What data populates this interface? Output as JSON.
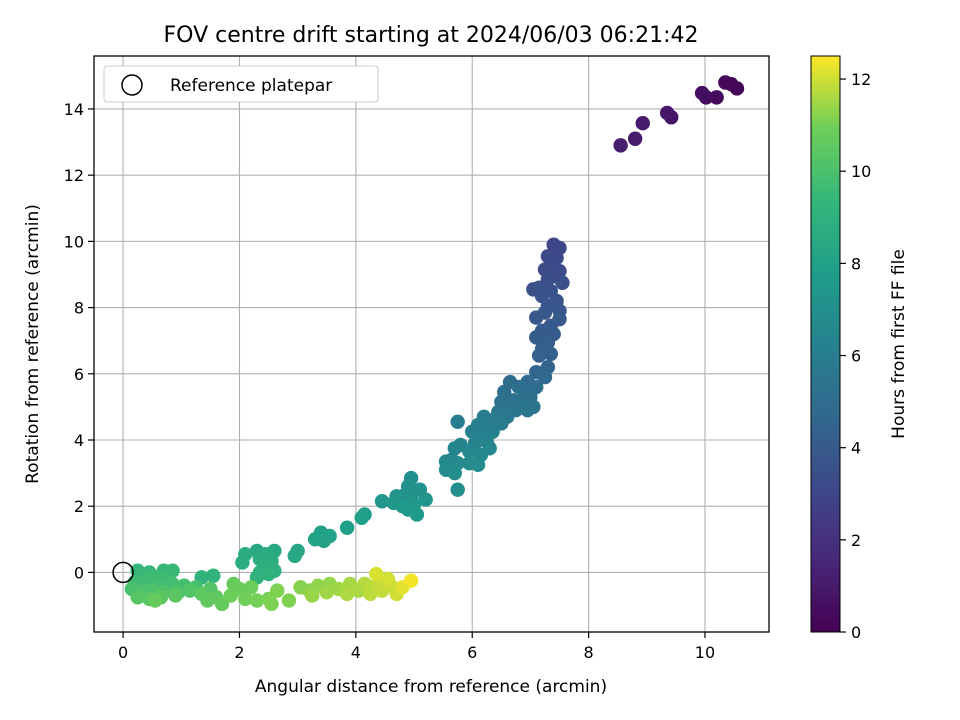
{
  "chart_data": {
    "type": "scatter",
    "title": "FOV centre drift starting at 2024/06/03 06:21:42",
    "xlabel": "Angular distance from reference (arcmin)",
    "ylabel": "Rotation from reference (arcmin)",
    "xlim": [
      -0.5,
      11.1
    ],
    "ylim": [
      -1.8,
      15.6
    ],
    "xticks": [
      0,
      2,
      4,
      6,
      8,
      10
    ],
    "yticks": [
      0,
      2,
      4,
      6,
      8,
      10,
      12,
      14
    ],
    "grid": true,
    "legend": {
      "position": "top-left",
      "entries": [
        {
          "label": "Reference platepar",
          "marker": "open-circle"
        }
      ]
    },
    "reference_point": {
      "x": 0,
      "y": 0
    },
    "colorbar": {
      "label": "Hours from first FF file",
      "range": [
        0,
        12.5
      ],
      "ticks": [
        0,
        2,
        4,
        6,
        8,
        10,
        12
      ],
      "colormap": "viridis"
    },
    "points": [
      {
        "x": 10.55,
        "y": 14.62,
        "t": 0.1
      },
      {
        "x": 10.45,
        "y": 14.75,
        "t": 0.2
      },
      {
        "x": 10.35,
        "y": 14.8,
        "t": 0.25
      },
      {
        "x": 10.2,
        "y": 14.35,
        "t": 0.4
      },
      {
        "x": 10.02,
        "y": 14.35,
        "t": 0.5
      },
      {
        "x": 9.95,
        "y": 14.48,
        "t": 0.55
      },
      {
        "x": 9.42,
        "y": 13.75,
        "t": 0.8
      },
      {
        "x": 9.35,
        "y": 13.88,
        "t": 0.85
      },
      {
        "x": 8.93,
        "y": 13.57,
        "t": 1.0
      },
      {
        "x": 8.8,
        "y": 13.1,
        "t": 1.05
      },
      {
        "x": 8.55,
        "y": 12.9,
        "t": 1.2
      },
      {
        "x": 7.4,
        "y": 9.9,
        "t": 3.0
      },
      {
        "x": 7.5,
        "y": 9.8,
        "t": 3.05
      },
      {
        "x": 7.3,
        "y": 9.55,
        "t": 3.1
      },
      {
        "x": 7.45,
        "y": 9.5,
        "t": 3.15
      },
      {
        "x": 7.35,
        "y": 9.3,
        "t": 3.2
      },
      {
        "x": 7.25,
        "y": 9.15,
        "t": 3.25
      },
      {
        "x": 7.5,
        "y": 9.1,
        "t": 3.3
      },
      {
        "x": 7.4,
        "y": 8.95,
        "t": 3.35
      },
      {
        "x": 7.3,
        "y": 8.85,
        "t": 3.4
      },
      {
        "x": 7.55,
        "y": 8.75,
        "t": 3.45
      },
      {
        "x": 7.15,
        "y": 8.6,
        "t": 3.5
      },
      {
        "x": 7.05,
        "y": 8.55,
        "t": 3.55
      },
      {
        "x": 7.35,
        "y": 8.5,
        "t": 3.6
      },
      {
        "x": 7.2,
        "y": 8.35,
        "t": 3.65
      },
      {
        "x": 7.45,
        "y": 8.2,
        "t": 3.7
      },
      {
        "x": 7.3,
        "y": 8.05,
        "t": 3.75
      },
      {
        "x": 7.5,
        "y": 7.9,
        "t": 3.8
      },
      {
        "x": 7.25,
        "y": 7.85,
        "t": 3.85
      },
      {
        "x": 7.1,
        "y": 7.7,
        "t": 3.9
      },
      {
        "x": 7.5,
        "y": 7.65,
        "t": 3.95
      },
      {
        "x": 7.35,
        "y": 7.45,
        "t": 4.0
      },
      {
        "x": 7.2,
        "y": 7.3,
        "t": 4.05
      },
      {
        "x": 7.4,
        "y": 7.2,
        "t": 4.1
      },
      {
        "x": 7.1,
        "y": 7.1,
        "t": 4.15
      },
      {
        "x": 7.3,
        "y": 6.95,
        "t": 4.2
      },
      {
        "x": 7.2,
        "y": 6.75,
        "t": 4.25
      },
      {
        "x": 7.35,
        "y": 6.6,
        "t": 4.3
      },
      {
        "x": 7.15,
        "y": 6.55,
        "t": 4.35
      },
      {
        "x": 7.3,
        "y": 6.2,
        "t": 4.5
      },
      {
        "x": 7.1,
        "y": 6.05,
        "t": 4.6
      },
      {
        "x": 7.25,
        "y": 5.9,
        "t": 4.7
      },
      {
        "x": 6.95,
        "y": 5.75,
        "t": 4.8
      },
      {
        "x": 7.1,
        "y": 5.6,
        "t": 4.9
      },
      {
        "x": 6.65,
        "y": 5.75,
        "t": 5.0
      },
      {
        "x": 6.8,
        "y": 5.6,
        "t": 5.05
      },
      {
        "x": 6.55,
        "y": 5.45,
        "t": 5.1
      },
      {
        "x": 6.9,
        "y": 5.4,
        "t": 5.15
      },
      {
        "x": 7.0,
        "y": 5.3,
        "t": 5.2
      },
      {
        "x": 6.7,
        "y": 5.2,
        "t": 5.25
      },
      {
        "x": 6.5,
        "y": 5.15,
        "t": 5.3
      },
      {
        "x": 6.85,
        "y": 5.05,
        "t": 5.35
      },
      {
        "x": 7.05,
        "y": 5.0,
        "t": 5.4
      },
      {
        "x": 6.6,
        "y": 4.95,
        "t": 5.45
      },
      {
        "x": 6.75,
        "y": 4.9,
        "t": 5.5
      },
      {
        "x": 6.45,
        "y": 4.85,
        "t": 5.55
      },
      {
        "x": 6.95,
        "y": 4.9,
        "t": 5.6
      },
      {
        "x": 6.6,
        "y": 4.7,
        "t": 5.7
      },
      {
        "x": 6.4,
        "y": 4.65,
        "t": 5.75
      },
      {
        "x": 6.5,
        "y": 4.5,
        "t": 5.8
      },
      {
        "x": 6.2,
        "y": 4.7,
        "t": 5.85
      },
      {
        "x": 6.3,
        "y": 4.55,
        "t": 5.9
      },
      {
        "x": 6.1,
        "y": 4.45,
        "t": 5.95
      },
      {
        "x": 5.75,
        "y": 4.55,
        "t": 6.0
      },
      {
        "x": 6.2,
        "y": 4.35,
        "t": 6.05
      },
      {
        "x": 6.35,
        "y": 4.25,
        "t": 6.1
      },
      {
        "x": 6.0,
        "y": 4.25,
        "t": 6.15
      },
      {
        "x": 6.15,
        "y": 4.1,
        "t": 6.2
      },
      {
        "x": 6.25,
        "y": 3.95,
        "t": 6.25
      },
      {
        "x": 6.05,
        "y": 3.9,
        "t": 6.3
      },
      {
        "x": 5.8,
        "y": 3.85,
        "t": 6.35
      },
      {
        "x": 5.7,
        "y": 3.75,
        "t": 6.4
      },
      {
        "x": 6.3,
        "y": 3.75,
        "t": 6.45
      },
      {
        "x": 5.95,
        "y": 3.65,
        "t": 6.5
      },
      {
        "x": 6.15,
        "y": 3.55,
        "t": 6.55
      },
      {
        "x": 5.65,
        "y": 3.4,
        "t": 6.6
      },
      {
        "x": 5.55,
        "y": 3.35,
        "t": 6.65
      },
      {
        "x": 5.75,
        "y": 3.3,
        "t": 6.7
      },
      {
        "x": 5.95,
        "y": 3.3,
        "t": 6.75
      },
      {
        "x": 6.1,
        "y": 3.25,
        "t": 6.8
      },
      {
        "x": 5.55,
        "y": 3.1,
        "t": 6.85
      },
      {
        "x": 5.7,
        "y": 3.0,
        "t": 6.9
      },
      {
        "x": 5.75,
        "y": 2.5,
        "t": 6.95
      },
      {
        "x": 4.95,
        "y": 2.85,
        "t": 7.0
      },
      {
        "x": 4.9,
        "y": 2.6,
        "t": 7.05
      },
      {
        "x": 5.1,
        "y": 2.5,
        "t": 7.1
      },
      {
        "x": 4.85,
        "y": 2.35,
        "t": 7.15
      },
      {
        "x": 4.7,
        "y": 2.3,
        "t": 7.2
      },
      {
        "x": 4.95,
        "y": 2.25,
        "t": 7.25
      },
      {
        "x": 5.2,
        "y": 2.2,
        "t": 7.3
      },
      {
        "x": 4.45,
        "y": 2.15,
        "t": 7.35
      },
      {
        "x": 4.65,
        "y": 2.1,
        "t": 7.4
      },
      {
        "x": 5.0,
        "y": 2.05,
        "t": 7.45
      },
      {
        "x": 4.8,
        "y": 2.0,
        "t": 7.5
      },
      {
        "x": 4.9,
        "y": 1.9,
        "t": 7.55
      },
      {
        "x": 5.05,
        "y": 1.75,
        "t": 7.6
      },
      {
        "x": 4.15,
        "y": 1.75,
        "t": 7.8
      },
      {
        "x": 4.1,
        "y": 1.65,
        "t": 7.85
      },
      {
        "x": 3.85,
        "y": 1.35,
        "t": 7.9
      },
      {
        "x": 3.4,
        "y": 1.2,
        "t": 8.0
      },
      {
        "x": 3.55,
        "y": 1.1,
        "t": 8.05
      },
      {
        "x": 3.3,
        "y": 1.0,
        "t": 8.1
      },
      {
        "x": 3.45,
        "y": 0.95,
        "t": 8.15
      },
      {
        "x": 3.0,
        "y": 0.65,
        "t": 8.3
      },
      {
        "x": 2.95,
        "y": 0.5,
        "t": 8.35
      },
      {
        "x": 2.6,
        "y": 0.65,
        "t": 8.45
      },
      {
        "x": 2.3,
        "y": 0.65,
        "t": 8.5
      },
      {
        "x": 2.45,
        "y": 0.55,
        "t": 8.55
      },
      {
        "x": 2.1,
        "y": 0.55,
        "t": 8.6
      },
      {
        "x": 2.35,
        "y": 0.4,
        "t": 8.65
      },
      {
        "x": 2.55,
        "y": 0.35,
        "t": 8.7
      },
      {
        "x": 2.05,
        "y": 0.3,
        "t": 8.75
      },
      {
        "x": 2.45,
        "y": 0.2,
        "t": 8.8
      },
      {
        "x": 2.6,
        "y": 0.05,
        "t": 8.85
      },
      {
        "x": 2.35,
        "y": 0.0,
        "t": 8.9
      },
      {
        "x": 2.5,
        "y": -0.05,
        "t": 8.95
      },
      {
        "x": 2.3,
        "y": -0.15,
        "t": 9.0
      },
      {
        "x": 1.55,
        "y": -0.1,
        "t": 9.1
      },
      {
        "x": 1.35,
        "y": -0.15,
        "t": 9.15
      },
      {
        "x": 0.25,
        "y": 0.05,
        "t": 9.3
      },
      {
        "x": 0.45,
        "y": 0.0,
        "t": 9.35
      },
      {
        "x": 0.7,
        "y": 0.05,
        "t": 9.4
      },
      {
        "x": 0.85,
        "y": 0.05,
        "t": 9.45
      },
      {
        "x": 0.35,
        "y": -0.1,
        "t": 9.5
      },
      {
        "x": 0.55,
        "y": -0.15,
        "t": 9.55
      },
      {
        "x": 0.75,
        "y": -0.2,
        "t": 9.6
      },
      {
        "x": 0.2,
        "y": -0.3,
        "t": 9.65
      },
      {
        "x": 0.4,
        "y": -0.3,
        "t": 9.7
      },
      {
        "x": 0.6,
        "y": -0.35,
        "t": 9.75
      },
      {
        "x": 0.85,
        "y": -0.35,
        "t": 9.8
      },
      {
        "x": 1.05,
        "y": -0.4,
        "t": 9.85
      },
      {
        "x": 1.25,
        "y": -0.45,
        "t": 9.9
      },
      {
        "x": 0.15,
        "y": -0.5,
        "t": 9.95
      },
      {
        "x": 0.3,
        "y": -0.55,
        "t": 10.0
      },
      {
        "x": 0.5,
        "y": -0.55,
        "t": 10.05
      },
      {
        "x": 0.7,
        "y": -0.6,
        "t": 10.1
      },
      {
        "x": 0.95,
        "y": -0.6,
        "t": 10.15
      },
      {
        "x": 1.15,
        "y": -0.55,
        "t": 10.2
      },
      {
        "x": 1.5,
        "y": -0.5,
        "t": 10.25
      },
      {
        "x": 0.25,
        "y": -0.75,
        "t": 10.3
      },
      {
        "x": 0.45,
        "y": -0.8,
        "t": 10.35
      },
      {
        "x": 0.65,
        "y": -0.75,
        "t": 10.4
      },
      {
        "x": 0.9,
        "y": -0.7,
        "t": 10.45
      },
      {
        "x": 1.35,
        "y": -0.65,
        "t": 10.5
      },
      {
        "x": 1.6,
        "y": -0.75,
        "t": 10.55
      },
      {
        "x": 1.45,
        "y": -0.85,
        "t": 10.6
      },
      {
        "x": 1.7,
        "y": -0.95,
        "t": 10.65
      },
      {
        "x": 0.55,
        "y": -0.85,
        "t": 10.7
      },
      {
        "x": 1.9,
        "y": -0.35,
        "t": 10.75
      },
      {
        "x": 2.0,
        "y": -0.5,
        "t": 10.8
      },
      {
        "x": 2.2,
        "y": -0.45,
        "t": 10.85
      },
      {
        "x": 1.85,
        "y": -0.7,
        "t": 10.9
      },
      {
        "x": 2.1,
        "y": -0.8,
        "t": 10.95
      },
      {
        "x": 2.3,
        "y": -0.85,
        "t": 11.0
      },
      {
        "x": 2.5,
        "y": -0.8,
        "t": 11.05
      },
      {
        "x": 2.55,
        "y": -0.95,
        "t": 11.1
      },
      {
        "x": 2.65,
        "y": -0.55,
        "t": 11.12
      },
      {
        "x": 2.85,
        "y": -0.85,
        "t": 11.15
      },
      {
        "x": 3.05,
        "y": -0.45,
        "t": 11.2
      },
      {
        "x": 3.2,
        "y": -0.55,
        "t": 11.25
      },
      {
        "x": 3.35,
        "y": -0.4,
        "t": 11.3
      },
      {
        "x": 3.55,
        "y": -0.35,
        "t": 11.35
      },
      {
        "x": 3.25,
        "y": -0.7,
        "t": 11.4
      },
      {
        "x": 3.5,
        "y": -0.6,
        "t": 11.45
      },
      {
        "x": 3.7,
        "y": -0.5,
        "t": 11.5
      },
      {
        "x": 3.9,
        "y": -0.35,
        "t": 11.55
      },
      {
        "x": 4.05,
        "y": -0.55,
        "t": 11.6
      },
      {
        "x": 3.85,
        "y": -0.65,
        "t": 11.65
      },
      {
        "x": 4.15,
        "y": -0.35,
        "t": 11.7
      },
      {
        "x": 4.3,
        "y": -0.45,
        "t": 11.75
      },
      {
        "x": 4.25,
        "y": -0.65,
        "t": 11.8
      },
      {
        "x": 4.45,
        "y": -0.55,
        "t": 11.85
      },
      {
        "x": 4.4,
        "y": -0.3,
        "t": 11.9
      },
      {
        "x": 4.6,
        "y": -0.4,
        "t": 11.95
      },
      {
        "x": 4.7,
        "y": -0.65,
        "t": 12.0
      },
      {
        "x": 4.55,
        "y": -0.2,
        "t": 12.05
      },
      {
        "x": 4.35,
        "y": -0.05,
        "t": 12.1
      },
      {
        "x": 4.8,
        "y": -0.45,
        "t": 12.2
      },
      {
        "x": 4.95,
        "y": -0.25,
        "t": 12.4
      }
    ]
  }
}
